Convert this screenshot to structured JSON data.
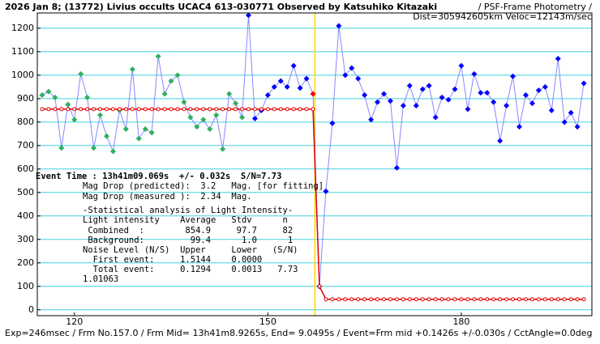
{
  "chart_data": {
    "type": "line",
    "title": "2026 Jan 8; (13772) Livius occults UCAC4 613-030771 Observed by Katsuhiko Kitazaki",
    "subtitle": "/ PSF-Frame Photometry /",
    "subtitle2": "Dist=305942605km Veloc=12143m/sec",
    "footer": "Exp=246msec / Frm No.157.0 / Frm Mid= 13h41m8.9265s, End= 9.0495s / Event=Frm mid +0.1426s +/-0.030s / CctAngle=0.0deg",
    "event_text": "Event Time : 13h41m09.069s  +/- 0.032s  S/N=7.73",
    "annotations": [
      "Mag Drop (predicted):  3.2   Mag. [for fitting]",
      "Mag Drop (measured ):  2.34  Mag.",
      "-Statistical analysis of Light Intensity-",
      "Light intensity    Average   Stdv      n",
      " Combined  :        854.9     97.7     82",
      " Background:         99.4      1.0      1",
      "Noise Level (N/S)  Upper     Lower   (S/N)",
      "  First event:     1.5144    0.0000",
      "  Total event:     0.1294    0.0013   7.73",
      "1.01063"
    ],
    "xlim": [
      114.25,
      200.25
    ],
    "xticks": [
      120,
      150,
      180
    ],
    "ylim": [
      -25,
      1265
    ],
    "yticks": [
      0,
      100,
      200,
      300,
      400,
      500,
      600,
      700,
      800,
      900,
      1000,
      1100,
      1200
    ],
    "grid": true,
    "grid_color": "#40d0e0",
    "line_color": "#8888ff",
    "event_line_color": "#ffd700",
    "event_line_x": 157.3,
    "series": [
      {
        "color": "#30b060",
        "marker": "diamond",
        "x": [
          115,
          116,
          117,
          118,
          119,
          120,
          121,
          122,
          123,
          124,
          125,
          126,
          127,
          128,
          129,
          130,
          131,
          132,
          133,
          134,
          135,
          136,
          137,
          138,
          139,
          140,
          141,
          142,
          143,
          144,
          145,
          146
        ],
        "values": [
          915,
          930,
          905,
          690,
          875,
          810,
          1005,
          905,
          690,
          830,
          740,
          675,
          850,
          770,
          1025,
          730,
          770,
          755,
          1080,
          920,
          975,
          1000,
          885,
          820,
          780,
          810,
          770,
          830,
          685,
          920,
          880,
          820
        ]
      },
      {
        "color": "#0000ff",
        "marker": "diamond",
        "x": [
          147,
          148,
          149,
          150,
          151,
          152,
          153,
          154,
          155,
          156,
          158,
          159,
          160,
          161,
          162,
          163,
          164,
          165,
          166,
          167,
          168,
          169,
          170,
          171,
          172,
          173,
          174,
          175,
          176,
          177,
          178,
          179,
          180,
          181,
          182,
          183,
          184,
          185,
          186,
          187,
          188,
          189,
          190,
          191,
          192,
          193,
          194,
          195,
          196,
          197,
          198,
          199
        ],
        "values": [
          1255,
          815,
          850,
          915,
          950,
          975,
          950,
          1040,
          945,
          985,
          100,
          505,
          795,
          1210,
          1000,
          1030,
          985,
          915,
          810,
          885,
          920,
          890,
          605,
          870,
          955,
          870,
          940,
          955,
          820,
          905,
          895,
          940,
          1040,
          855,
          1005,
          925,
          925,
          885,
          720,
          870,
          995,
          780,
          915,
          880,
          935,
          950,
          850,
          1070,
          800,
          840,
          780,
          965
        ]
      },
      {
        "color": "#ff0000",
        "marker": "diamond",
        "x": [
          157
        ],
        "values": [
          920
        ]
      },
      {
        "color": "#e00000",
        "marker": "circle",
        "model": true,
        "x": [
          115,
          116,
          117,
          118,
          119,
          120,
          121,
          122,
          123,
          124,
          125,
          126,
          127,
          128,
          129,
          130,
          131,
          132,
          133,
          134,
          135,
          136,
          137,
          138,
          139,
          140,
          141,
          142,
          143,
          144,
          145,
          146,
          147,
          148,
          149,
          150,
          151,
          152,
          153,
          154,
          155,
          156,
          157,
          158,
          159,
          160,
          161,
          162,
          163,
          164,
          165,
          166,
          167,
          168,
          169,
          170,
          171,
          172,
          173,
          174,
          175,
          176,
          177,
          178,
          179,
          180,
          181,
          182,
          183,
          184,
          185,
          186,
          187,
          188,
          189,
          190,
          191,
          192,
          193,
          194,
          195,
          196,
          197,
          198,
          199
        ],
        "values": [
          855,
          855,
          855,
          855,
          855,
          855,
          855,
          855,
          855,
          855,
          855,
          855,
          855,
          855,
          855,
          855,
          855,
          855,
          855,
          855,
          855,
          855,
          855,
          855,
          855,
          855,
          855,
          855,
          855,
          855,
          855,
          855,
          855,
          855,
          855,
          855,
          855,
          855,
          855,
          855,
          855,
          855,
          855,
          100,
          45,
          45,
          45,
          45,
          45,
          45,
          45,
          45,
          45,
          45,
          45,
          45,
          45,
          45,
          45,
          45,
          45,
          45,
          45,
          45,
          45,
          45,
          45,
          45,
          45,
          45,
          45,
          45,
          45,
          45,
          45,
          45,
          45,
          45,
          45,
          45,
          45,
          45,
          45,
          45,
          45
        ]
      }
    ]
  }
}
